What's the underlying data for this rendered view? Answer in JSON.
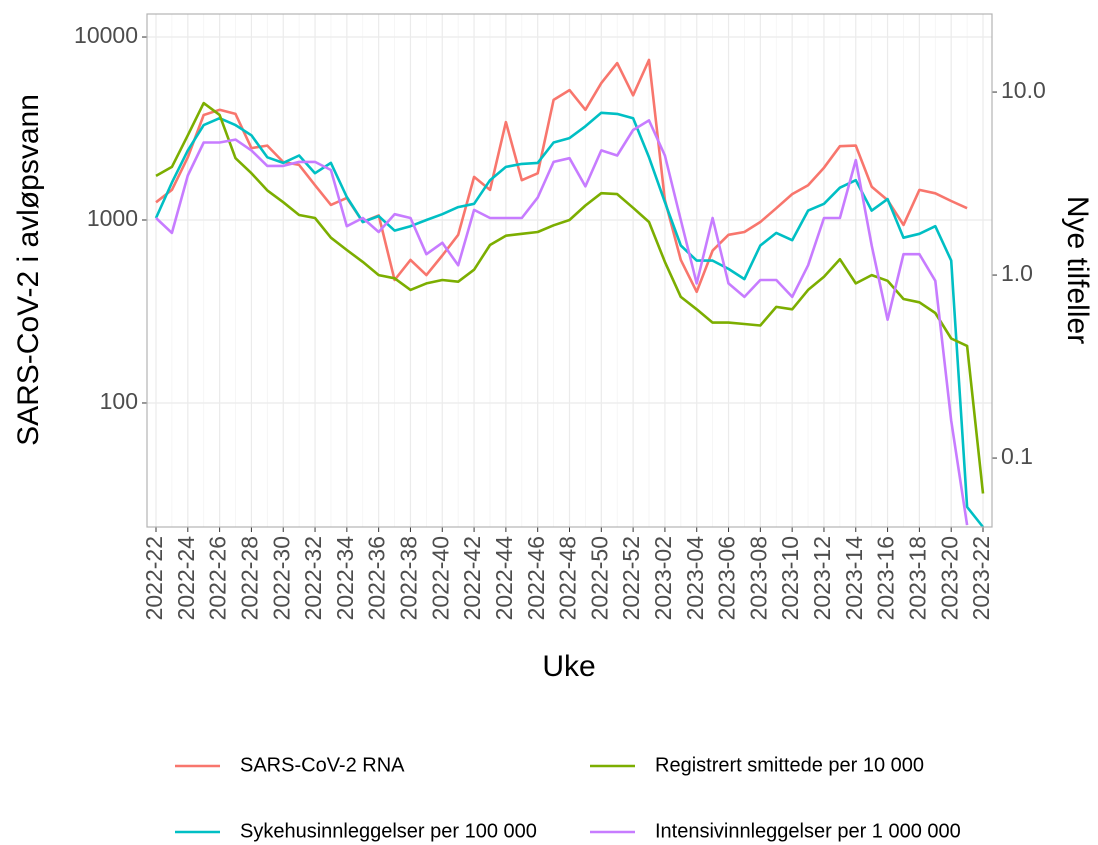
{
  "chart_data": {
    "type": "line",
    "x_label": "Uke",
    "y_label": "SARS-CoV-2 i avløpsvann",
    "y2_label": "Nye tilfeller",
    "log_scale": true,
    "grid": true,
    "legend_position": "bottom",
    "categories": [
      "2022-22",
      null,
      "2022-24",
      null,
      "2022-26",
      null,
      "2022-28",
      null,
      "2022-30",
      null,
      "2022-32",
      null,
      "2022-34",
      null,
      "2022-36",
      null,
      "2022-38",
      null,
      "2022-40",
      null,
      "2022-42",
      null,
      "2022-44",
      null,
      "2022-46",
      null,
      "2022-48",
      null,
      "2022-50",
      null,
      "2022-52",
      null,
      "2023-02",
      null,
      "2023-04",
      null,
      "2023-06",
      null,
      "2023-08",
      null,
      "2023-10",
      null,
      "2023-12",
      null,
      "2023-14",
      null,
      "2023-16",
      null,
      "2023-18",
      null,
      "2023-20",
      null,
      "2023-22"
    ],
    "ylim": [
      21,
      13360
    ],
    "yticks": [
      100,
      1000,
      10000
    ],
    "y2lim": [
      0.042,
      26.7
    ],
    "y2ticks": [
      0.1,
      {
        "value": 1,
        "label": "1.0"
      },
      {
        "value": 10,
        "label": "10.0"
      }
    ],
    "series": [
      {
        "name": "SARS-CoV-2 RNA",
        "color": "#F8766D",
        "values": [
          1250,
          1460,
          2200,
          3750,
          4000,
          3800,
          2470,
          2550,
          2075,
          2000,
          1550,
          1210,
          1320,
          975,
          1060,
          470,
          605,
          500,
          640,
          830,
          1720,
          1460,
          3430,
          1650,
          1800,
          4530,
          5130,
          4000,
          5600,
          7200,
          4800,
          7500,
          1285,
          605,
          405,
          680,
          830,
          860,
          975,
          1160,
          1385,
          1550,
          1930,
          2530,
          2550,
          1520,
          1285,
          940,
          1460,
          1400,
          1270,
          1160,
          null
        ]
      },
      {
        "name": "Sykehusinnleggelser per 100 000",
        "color": "#00BFC4",
        "axis": "y2",
        "values": [
          2.05,
          3.2,
          4.8,
          6.6,
          7.2,
          6.6,
          5.8,
          4.4,
          4.1,
          4.5,
          3.6,
          4.1,
          2.67,
          1.95,
          2.1,
          1.75,
          1.85,
          2.0,
          2.15,
          2.35,
          2.45,
          3.3,
          3.9,
          4.05,
          4.1,
          5.3,
          5.6,
          6.5,
          7.7,
          7.6,
          7.2,
          4.4,
          2.5,
          1.45,
          1.2,
          1.2,
          1.08,
          0.95,
          1.45,
          1.7,
          1.55,
          2.25,
          2.45,
          3.0,
          3.3,
          2.25,
          2.6,
          1.6,
          1.68,
          1.85,
          1.2,
          0.054,
          0.042
        ]
      },
      {
        "name": "Registrert smittede per 10 000",
        "color": "#7CAE00",
        "axis": "y2",
        "values": [
          3.48,
          3.9,
          5.8,
          8.7,
          7.5,
          4.35,
          3.6,
          2.9,
          2.5,
          2.13,
          2.05,
          1.6,
          1.37,
          1.18,
          1.0,
          0.96,
          0.83,
          0.9,
          0.94,
          0.92,
          1.07,
          1.46,
          1.64,
          1.68,
          1.72,
          1.87,
          2.0,
          2.4,
          2.8,
          2.77,
          2.33,
          1.95,
          1.18,
          0.76,
          0.65,
          0.55,
          0.55,
          0.54,
          0.53,
          0.67,
          0.65,
          0.83,
          0.98,
          1.22,
          0.9,
          1.0,
          0.93,
          0.74,
          0.71,
          0.62,
          0.45,
          0.41,
          0.064
        ]
      },
      {
        "name": "Intensivinnleggelser per 1 000 000",
        "color": "#C77CFF",
        "axis": "y2",
        "values": [
          2.05,
          1.7,
          3.5,
          5.3,
          5.3,
          5.5,
          4.8,
          3.95,
          3.95,
          4.15,
          4.15,
          3.75,
          1.85,
          2.05,
          1.72,
          2.15,
          2.05,
          1.3,
          1.5,
          1.13,
          2.27,
          2.05,
          2.05,
          2.05,
          2.65,
          4.15,
          4.35,
          3.05,
          4.8,
          4.5,
          6.2,
          7.0,
          4.5,
          2.0,
          0.9,
          2.05,
          0.9,
          0.76,
          0.94,
          0.94,
          0.76,
          1.13,
          2.05,
          2.05,
          4.25,
          1.45,
          0.57,
          1.3,
          1.3,
          0.93,
          0.16,
          0.043,
          null
        ]
      }
    ]
  }
}
